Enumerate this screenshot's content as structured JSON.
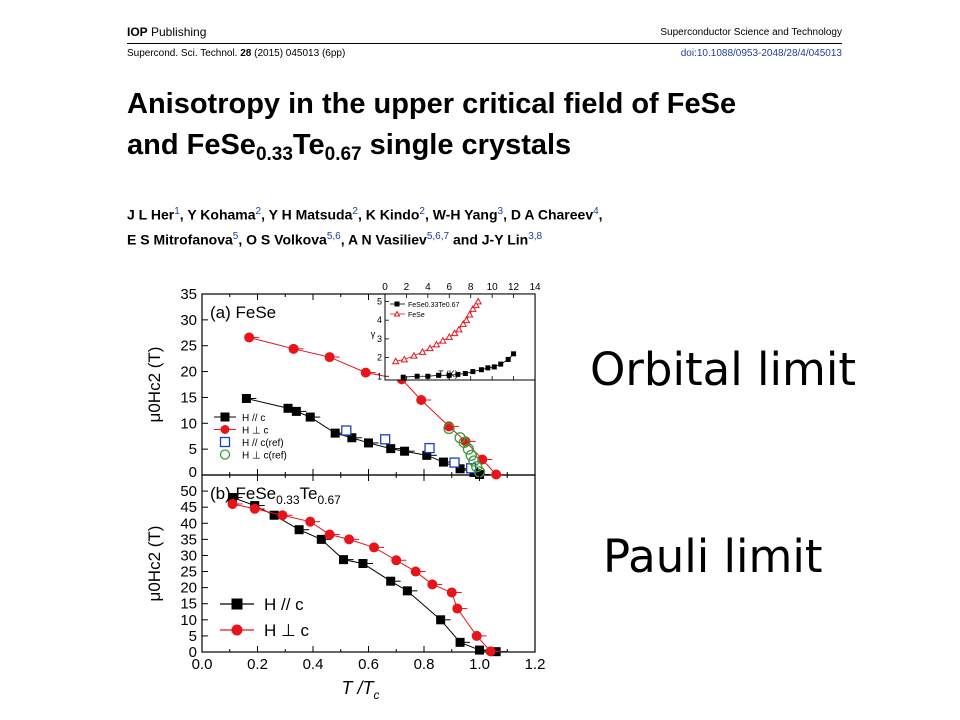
{
  "header": {
    "publisher_bold": "IOP",
    "publisher_rest": " Publishing",
    "journal": "Superconductor Science and Technology",
    "citation_prefix": "Supercond. Sci. Technol. ",
    "citation_volume": "28",
    "citation_suffix": " (2015) 045013 (6pp)",
    "doi": "doi:10.1088/0953-2048/28/4/045013"
  },
  "paper": {
    "title_line1": "Anisotropy in the upper critical field of FeSe",
    "title_line2_a": "and FeSe",
    "title_line2_sub1": "0.33",
    "title_line2_b": "Te",
    "title_line2_sub2": "0.67",
    "title_line2_c": " single crystals",
    "authors": [
      {
        "name": "J L Her",
        "aff": "1"
      },
      {
        "name": "Y Kohama",
        "aff": "2"
      },
      {
        "name": "Y H Matsuda",
        "aff": "2"
      },
      {
        "name": "K Kindo",
        "aff": "2"
      },
      {
        "name": "W-H Yang",
        "aff": "3"
      },
      {
        "name": "D A Chareev",
        "aff": "4"
      },
      {
        "name": "E S Mitrofanova",
        "aff": "5"
      },
      {
        "name": "O S Volkova",
        "aff": "5,6"
      },
      {
        "name": "A N Vasiliev",
        "aff": "5,6,7"
      },
      {
        "name": "J-Y Lin",
        "aff": "3,8"
      }
    ],
    "authors_and": "and"
  },
  "annotations": {
    "orbital": "Orbital limit",
    "pauli": "Pauli limit"
  },
  "colors": {
    "black_series": "#000000",
    "red_series": "#e8141b",
    "blue_ref": "#1a3fc4",
    "green_ref": "#3b9a3b",
    "doi": "#1f3da0"
  },
  "chart_data": [
    {
      "type": "scatter",
      "panel_label": "(a) FeSe",
      "xlabel": "T /T",
      "xlabel_sub": "c",
      "ylabel": "μ0Hc2 (T)",
      "xlim": [
        0.0,
        1.2
      ],
      "ylim": [
        0,
        35
      ],
      "yticks": [
        0,
        5,
        10,
        15,
        20,
        25,
        30,
        35
      ],
      "legend_position": "lower-left",
      "series": [
        {
          "name": "H // c",
          "marker": "square-filled",
          "color": "#000000",
          "line": true,
          "x": [
            0.16,
            0.31,
            0.34,
            0.39,
            0.48,
            0.54,
            0.6,
            0.68,
            0.73,
            0.81,
            0.87,
            0.93,
            0.98,
            1.0
          ],
          "y": [
            14.8,
            12.9,
            12.3,
            11.2,
            8.1,
            7.2,
            6.2,
            5.1,
            4.6,
            3.8,
            2.5,
            1.2,
            0.5,
            0.1
          ]
        },
        {
          "name": "H ⊥ c",
          "marker": "circle-filled",
          "color": "#e8141b",
          "line": true,
          "x": [
            0.17,
            0.33,
            0.46,
            0.59,
            0.72,
            0.79,
            0.89,
            0.95,
            1.01,
            1.06
          ],
          "y": [
            26.6,
            24.4,
            22.8,
            19.8,
            18.5,
            14.5,
            9.4,
            6.5,
            3.0,
            0.1
          ]
        },
        {
          "name": "H // c(ref)",
          "marker": "square-open",
          "color": "#1a3fc4",
          "line": false,
          "x": [
            0.52,
            0.66,
            0.82,
            0.91,
            0.97
          ],
          "y": [
            8.6,
            6.9,
            5.2,
            2.4,
            1.3
          ]
        },
        {
          "name": "H ⊥ c(ref)",
          "marker": "circle-open",
          "color": "#3b9a3b",
          "line": false,
          "x": [
            0.89,
            0.93,
            0.945,
            0.96,
            0.97,
            0.98,
            0.99,
            1.0
          ],
          "y": [
            9.0,
            7.2,
            6.3,
            5.0,
            3.8,
            2.7,
            1.6,
            0.6
          ]
        }
      ],
      "inset": {
        "xlabel": "T (K)",
        "ylabel": "γ",
        "xlim": [
          0,
          14
        ],
        "ylim": [
          0.8,
          5.4
        ],
        "xticks": [
          0,
          2,
          4,
          6,
          8,
          10,
          12,
          14
        ],
        "yticks": [
          1,
          2,
          3,
          4,
          5
        ],
        "series": [
          {
            "name": "FeSe0.33Te0.67",
            "marker": "square-filled",
            "color": "#000000",
            "x": [
              1.7,
              3.0,
              4.0,
              5.0,
              6.0,
              6.8,
              7.5,
              8.2,
              9.0,
              9.6,
              10.2,
              10.8,
              11.5,
              12.0
            ],
            "y": [
              0.95,
              1.0,
              1.0,
              1.05,
              1.05,
              1.1,
              1.15,
              1.25,
              1.35,
              1.45,
              1.5,
              1.65,
              1.9,
              2.2
            ]
          },
          {
            "name": "FeSe",
            "marker": "triangle-open",
            "color": "#e8141b",
            "x": [
              1.0,
              1.8,
              2.7,
              3.5,
              4.2,
              4.8,
              5.4,
              6.0,
              6.5,
              6.9,
              7.3,
              7.6,
              7.9,
              8.2,
              8.5,
              8.7
            ],
            "y": [
              1.8,
              1.9,
              2.1,
              2.3,
              2.5,
              2.7,
              2.9,
              3.1,
              3.3,
              3.5,
              3.8,
              4.0,
              4.3,
              4.6,
              4.8,
              5.0
            ]
          }
        ]
      }
    },
    {
      "type": "scatter",
      "panel_label_a": "(b) FeSe",
      "panel_label_sub1": "0.33",
      "panel_label_b": "Te",
      "panel_label_sub2": "0.67",
      "xlabel": "T /T",
      "xlabel_sub": "c",
      "ylabel": "μ0Hc2 (T)",
      "xlim": [
        0.0,
        1.2
      ],
      "ylim": [
        0,
        55
      ],
      "xticks": [
        0.0,
        0.2,
        0.4,
        0.6,
        0.8,
        1.0,
        1.2
      ],
      "yticks": [
        0,
        5,
        10,
        15,
        20,
        25,
        30,
        35,
        40,
        45,
        50
      ],
      "legend_position": "lower-left",
      "series": [
        {
          "name": "H // c",
          "marker": "square-filled",
          "color": "#000000",
          "line": true,
          "x": [
            0.11,
            0.19,
            0.26,
            0.35,
            0.43,
            0.51,
            0.58,
            0.68,
            0.74,
            0.86,
            0.93,
            1.0,
            1.06
          ],
          "y": [
            48.0,
            45.5,
            42.5,
            38.0,
            35.0,
            28.7,
            27.5,
            22.0,
            19.0,
            10.0,
            3.0,
            0.6,
            0.1
          ]
        },
        {
          "name": "H ⊥ c",
          "marker": "circle-filled",
          "color": "#e8141b",
          "line": true,
          "x": [
            0.11,
            0.19,
            0.29,
            0.39,
            0.46,
            0.53,
            0.62,
            0.7,
            0.77,
            0.83,
            0.9,
            0.92,
            0.99,
            1.04
          ],
          "y": [
            46.0,
            44.5,
            42.5,
            40.5,
            36.5,
            35.0,
            32.5,
            28.5,
            25.0,
            21.0,
            18.5,
            13.5,
            5.0,
            0.2
          ]
        }
      ]
    }
  ]
}
